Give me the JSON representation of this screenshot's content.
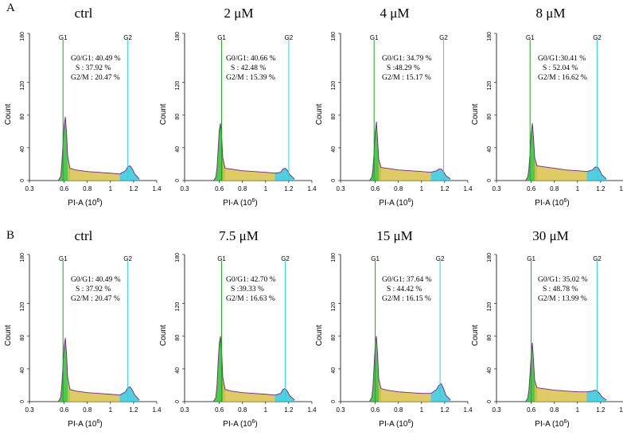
{
  "figure": {
    "y_axis_label": "Count",
    "x_axis_label": "PI-A (10",
    "x_axis_exponent": "6",
    "x_axis_label_close": ")",
    "x_ticks": [
      "0.3",
      "0.6",
      "0.8",
      "1",
      "1.2",
      "1.4"
    ],
    "y_ticks": [
      "0",
      "40",
      "80",
      "120",
      "180"
    ],
    "peak_labels": [
      "G1",
      "G2"
    ],
    "colors": {
      "g1_fill": "#2fbf2f",
      "g2_fill": "#35c7d8",
      "s_fill": "#d8c24a",
      "outline": "#7a1f8c",
      "g1_line": "#1ea51e",
      "g2_line": "#2bd4e0",
      "axis": "#000000"
    }
  },
  "rows": [
    {
      "label": "A",
      "panels": [
        {
          "title": "ctrl",
          "g0g1_label": "G0/G1: 40.49 %",
          "s_label": "S     : 37.92 %",
          "g2m_label": "G2/M : 20.47 %"
        },
        {
          "title": "2 μM",
          "g0g1_label": "G0/G1: 40.66 %",
          "s_label": "S     : 42.48 %",
          "g2m_label": "G2/M : 15.39 %"
        },
        {
          "title": "4 μM",
          "g0g1_label": "G0/G1: 34.79 %",
          "s_label": "S     :48.29 %",
          "g2m_label": "G2/M : 15.17 %"
        },
        {
          "title": "8 μM",
          "g0g1_label": "G0/G1:30.41 %",
          "s_label": "S      : 52.04 %",
          "g2m_label": "G2/M : 16.62 %"
        }
      ]
    },
    {
      "label": "B",
      "panels": [
        {
          "title": "ctrl",
          "g0g1_label": "G0/G1: 40.49 %",
          "s_label": "S     : 37.92 %",
          "g2m_label": "G2/M : 20.47 %"
        },
        {
          "title": "7.5 μM",
          "g0g1_label": "G0/G1: 42.70  %",
          "s_label": "S     :39.33 %",
          "g2m_label": "G2/M : 16.63 %"
        },
        {
          "title": "15 μM",
          "g0g1_label": "G0/G1: 37.64 %",
          "s_label": "S     : 44.42 %",
          "g2m_label": "G2/M : 16.15 %"
        },
        {
          "title": "30 μM",
          "g0g1_label": "G0/G1: 35.02 %",
          "s_label": "S     : 48.78 %",
          "g2m_label": "G2/M : 13.99 %"
        }
      ]
    }
  ],
  "chart_data": [
    {
      "type": "area",
      "row": "A",
      "title": "ctrl",
      "xlabel": "PI-A (10^6)",
      "ylabel": "Count",
      "xlim": [
        0.3,
        1.4
      ],
      "ylim": [
        0,
        180
      ],
      "x": [
        0.55,
        0.57,
        0.58,
        0.59,
        0.6,
        0.61,
        0.62,
        0.63,
        0.65,
        0.7,
        0.8,
        0.9,
        1.0,
        1.08,
        1.13,
        1.15,
        1.17,
        1.19,
        1.21,
        1.25
      ],
      "series": [
        {
          "name": "Count",
          "values": [
            0,
            5,
            20,
            45,
            68,
            78,
            60,
            30,
            15,
            13,
            11,
            10,
            9,
            8,
            12,
            17,
            18,
            14,
            8,
            2
          ]
        }
      ],
      "g1_marker": 0.59,
      "g2_marker": 1.15
    },
    {
      "type": "area",
      "row": "A",
      "title": "2 μM",
      "xlabel": "PI-A (10^6)",
      "ylabel": "Count",
      "xlim": [
        0.3,
        1.4
      ],
      "ylim": [
        0,
        180
      ],
      "x": [
        0.55,
        0.57,
        0.58,
        0.59,
        0.6,
        0.61,
        0.62,
        0.63,
        0.65,
        0.7,
        0.8,
        0.9,
        1.0,
        1.08,
        1.13,
        1.15,
        1.17,
        1.19,
        1.21,
        1.25
      ],
      "series": [
        {
          "name": "Count",
          "values": [
            0,
            4,
            15,
            38,
            62,
            70,
            55,
            28,
            15,
            14,
            12,
            11,
            10,
            9,
            10,
            14,
            15,
            12,
            7,
            2
          ]
        }
      ],
      "g1_marker": 0.62,
      "g2_marker": 1.2
    },
    {
      "type": "area",
      "row": "A",
      "title": "4 μM",
      "xlabel": "PI-A (10^6)",
      "ylabel": "Count",
      "xlim": [
        0.3,
        1.4
      ],
      "ylim": [
        0,
        180
      ],
      "x": [
        0.55,
        0.57,
        0.58,
        0.59,
        0.6,
        0.61,
        0.62,
        0.63,
        0.65,
        0.7,
        0.8,
        0.9,
        1.0,
        1.08,
        1.13,
        1.15,
        1.17,
        1.19,
        1.21,
        1.25
      ],
      "series": [
        {
          "name": "Count",
          "values": [
            0,
            4,
            14,
            35,
            60,
            72,
            50,
            26,
            16,
            15,
            13,
            12,
            11,
            10,
            12,
            14,
            14,
            11,
            6,
            2
          ]
        }
      ],
      "g1_marker": 0.59,
      "g2_marker": 1.19
    },
    {
      "type": "area",
      "row": "A",
      "title": "8 μM",
      "xlabel": "PI-A (10^6)",
      "ylabel": "Count",
      "xlim": [
        0.3,
        1.4
      ],
      "ylim": [
        0,
        180
      ],
      "x": [
        0.55,
        0.57,
        0.58,
        0.59,
        0.6,
        0.61,
        0.62,
        0.63,
        0.65,
        0.7,
        0.8,
        0.9,
        1.0,
        1.08,
        1.13,
        1.15,
        1.17,
        1.19,
        1.21,
        1.25
      ],
      "series": [
        {
          "name": "Count",
          "values": [
            0,
            4,
            14,
            34,
            58,
            70,
            52,
            28,
            18,
            17,
            15,
            13,
            12,
            11,
            13,
            16,
            17,
            13,
            7,
            2
          ]
        }
      ],
      "g1_marker": 0.59,
      "g2_marker": 1.17
    },
    {
      "type": "area",
      "row": "B",
      "title": "ctrl",
      "xlabel": "PI-A (10^6)",
      "ylabel": "Count",
      "xlim": [
        0.3,
        1.4
      ],
      "ylim": [
        0,
        180
      ],
      "x": [
        0.55,
        0.57,
        0.58,
        0.59,
        0.6,
        0.61,
        0.62,
        0.63,
        0.65,
        0.7,
        0.8,
        0.9,
        1.0,
        1.08,
        1.13,
        1.15,
        1.17,
        1.19,
        1.21,
        1.25
      ],
      "series": [
        {
          "name": "Count",
          "values": [
            0,
            5,
            20,
            45,
            68,
            78,
            60,
            30,
            15,
            13,
            11,
            10,
            9,
            8,
            12,
            17,
            18,
            14,
            8,
            2
          ]
        }
      ],
      "g1_marker": 0.59,
      "g2_marker": 1.15
    },
    {
      "type": "area",
      "row": "B",
      "title": "7.5 μM",
      "xlabel": "PI-A (10^6)",
      "ylabel": "Count",
      "xlim": [
        0.3,
        1.4
      ],
      "ylim": [
        0,
        180
      ],
      "x": [
        0.55,
        0.57,
        0.58,
        0.59,
        0.6,
        0.61,
        0.62,
        0.63,
        0.65,
        0.7,
        0.8,
        0.9,
        1.0,
        1.08,
        1.13,
        1.15,
        1.17,
        1.19,
        1.21,
        1.25
      ],
      "series": [
        {
          "name": "Count",
          "values": [
            0,
            5,
            20,
            48,
            72,
            80,
            62,
            30,
            15,
            13,
            11,
            10,
            9,
            8,
            10,
            15,
            16,
            12,
            7,
            2
          ]
        }
      ],
      "g1_marker": 0.62,
      "g2_marker": 1.17
    },
    {
      "type": "area",
      "row": "B",
      "title": "15 μM",
      "xlabel": "PI-A (10^6)",
      "ylabel": "Count",
      "xlim": [
        0.3,
        1.4
      ],
      "ylim": [
        0,
        180
      ],
      "x": [
        0.55,
        0.57,
        0.58,
        0.59,
        0.6,
        0.61,
        0.62,
        0.63,
        0.65,
        0.7,
        0.8,
        0.9,
        1.0,
        1.08,
        1.13,
        1.15,
        1.17,
        1.19,
        1.21,
        1.25
      ],
      "series": [
        {
          "name": "Count",
          "values": [
            0,
            5,
            18,
            44,
            70,
            80,
            58,
            28,
            16,
            14,
            12,
            11,
            10,
            10,
            15,
            20,
            22,
            16,
            8,
            2
          ]
        }
      ],
      "g1_marker": 0.6,
      "g2_marker": 1.16
    },
    {
      "type": "area",
      "row": "B",
      "title": "30 μM",
      "xlabel": "PI-A (10^6)",
      "ylabel": "Count",
      "xlim": [
        0.3,
        1.4
      ],
      "ylim": [
        0,
        180
      ],
      "x": [
        0.55,
        0.57,
        0.58,
        0.59,
        0.6,
        0.61,
        0.62,
        0.63,
        0.65,
        0.7,
        0.8,
        0.9,
        1.0,
        1.08,
        1.13,
        1.15,
        1.17,
        1.19,
        1.21,
        1.25
      ],
      "series": [
        {
          "name": "Count",
          "values": [
            0,
            4,
            14,
            34,
            58,
            72,
            50,
            26,
            17,
            16,
            14,
            13,
            12,
            12,
            13,
            14,
            13,
            10,
            6,
            2
          ]
        }
      ],
      "g1_marker": 0.6,
      "g2_marker": 1.17
    }
  ]
}
